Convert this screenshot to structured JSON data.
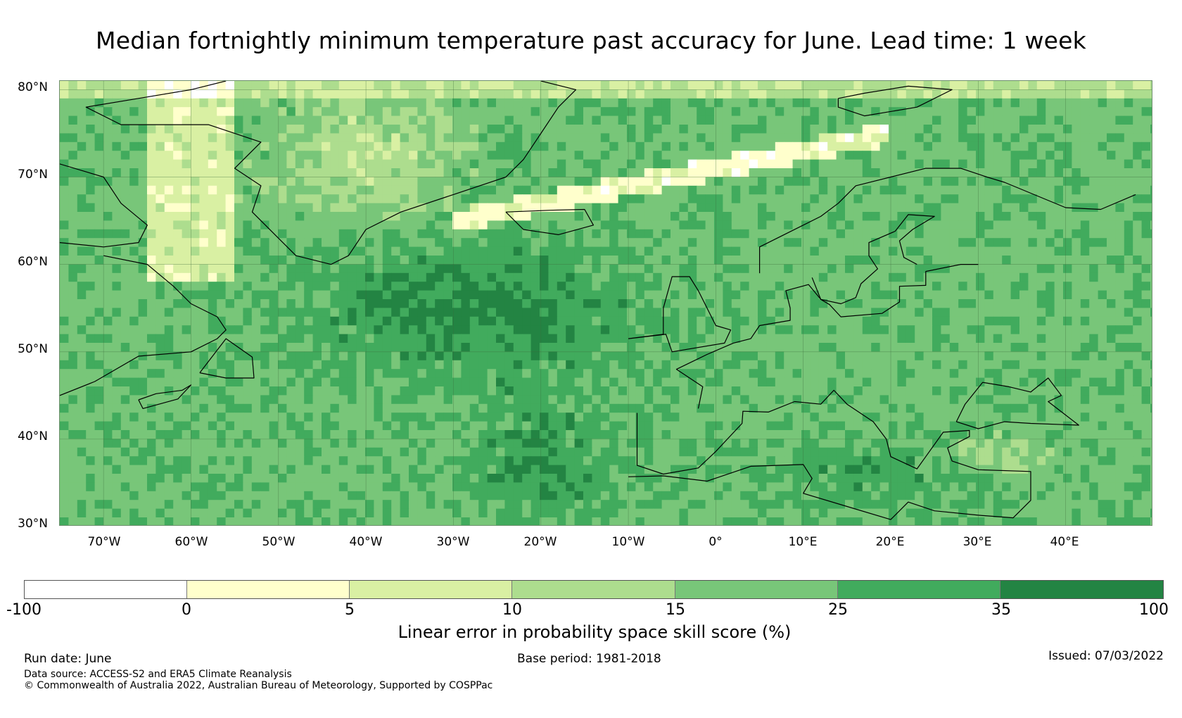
{
  "title": "Median fortnightly minimum temperature past accuracy for June. Lead time: 1 week",
  "map": {
    "lat_labels": [
      "80°N",
      "70°N",
      "60°N",
      "50°N",
      "40°N",
      "30°N"
    ],
    "lon_labels": [
      "70°W",
      "60°W",
      "50°W",
      "40°W",
      "30°W",
      "20°W",
      "10°W",
      "0°",
      "10°E",
      "20°E",
      "30°E",
      "40°E"
    ],
    "extent": {
      "lon": [
        -75,
        50
      ],
      "lat": [
        30,
        81
      ]
    },
    "grid_lines": true,
    "coastlines": true
  },
  "colorbar": {
    "label": "Linear error in probability space skill score (%)",
    "ticks": [
      "-100",
      "0",
      "5",
      "10",
      "15",
      "25",
      "35",
      "100"
    ],
    "colors": [
      "#ffffff",
      "#ffffcc",
      "#d9f0a3",
      "#addd8e",
      "#78c679",
      "#41ab5d",
      "#238443"
    ]
  },
  "footer": {
    "run_date": "Run date: June",
    "base_period": "Base period: 1981-2018",
    "issued": "Issued: 07/03/2022",
    "data_source": "Data source: ACCESS-S2 and ERA5 Climate Reanalysis",
    "copyright": "© Commonwealth of Australia 2022, Australian Bureau of Meteorology, Supported by COSPPac"
  }
}
